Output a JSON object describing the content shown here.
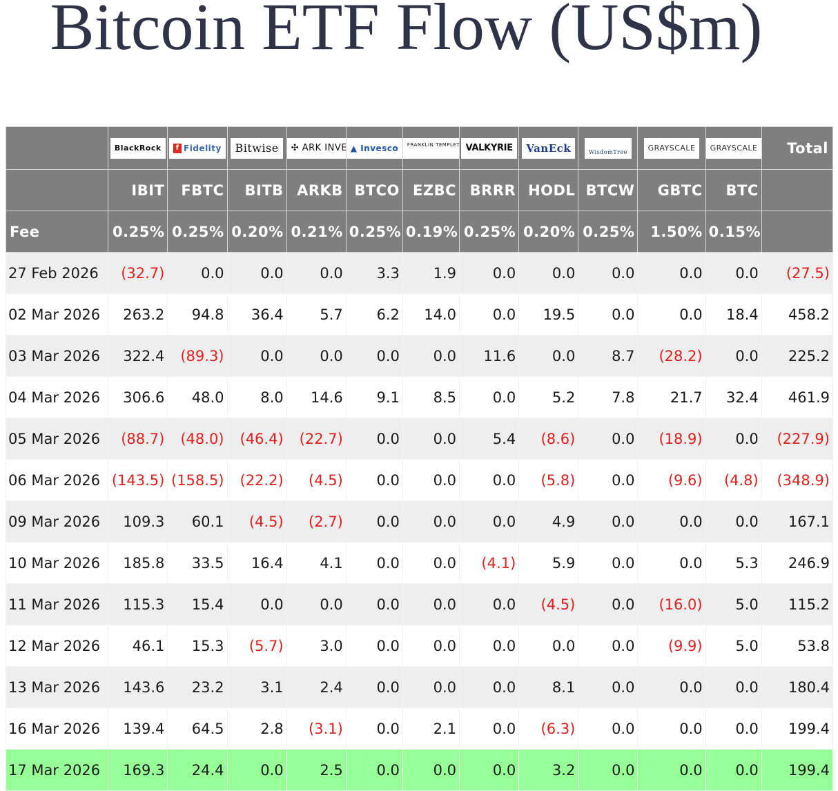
{
  "title": "Bitcoin ETF Flow (US$m)",
  "colors": {
    "header_bg": "#7f7f7f",
    "negative": "#e0201c",
    "highlight_row": "#96ff96",
    "alt_row": "#eeeeee"
  },
  "issuers": [
    "BlackRock",
    "Fidelity",
    "Bitwise",
    "ARK INVEST",
    "Invesco",
    "FRANKLIN TEMPLETON",
    "VALKYRIE",
    "VanEck",
    "WisdomTree",
    "GRAYSCALE",
    "GRAYSCALE"
  ],
  "total_label": "Total",
  "tickers": [
    "IBIT",
    "FBTC",
    "BITB",
    "ARKB",
    "BTCO",
    "EZBC",
    "BRRR",
    "HODL",
    "BTCW",
    "GBTC",
    "BTC"
  ],
  "fee_label": "Fee",
  "fees": [
    "0.25%",
    "0.25%",
    "0.20%",
    "0.21%",
    "0.25%",
    "0.19%",
    "0.25%",
    "0.20%",
    "0.25%",
    "1.50%",
    "0.15%"
  ],
  "rows": [
    {
      "date": "27 Feb 2026",
      "values": [
        "(32.7)",
        "0.0",
        "0.0",
        "0.0",
        "3.3",
        "1.9",
        "0.0",
        "0.0",
        "0.0",
        "0.0",
        "0.0"
      ],
      "total": "(27.5)"
    },
    {
      "date": "02 Mar 2026",
      "values": [
        "263.2",
        "94.8",
        "36.4",
        "5.7",
        "6.2",
        "14.0",
        "0.0",
        "19.5",
        "0.0",
        "0.0",
        "18.4"
      ],
      "total": "458.2"
    },
    {
      "date": "03 Mar 2026",
      "values": [
        "322.4",
        "(89.3)",
        "0.0",
        "0.0",
        "0.0",
        "0.0",
        "11.6",
        "0.0",
        "8.7",
        "(28.2)",
        "0.0"
      ],
      "total": "225.2"
    },
    {
      "date": "04 Mar 2026",
      "values": [
        "306.6",
        "48.0",
        "8.0",
        "14.6",
        "9.1",
        "8.5",
        "0.0",
        "5.2",
        "7.8",
        "21.7",
        "32.4"
      ],
      "total": "461.9"
    },
    {
      "date": "05 Mar 2026",
      "values": [
        "(88.7)",
        "(48.0)",
        "(46.4)",
        "(22.7)",
        "0.0",
        "0.0",
        "5.4",
        "(8.6)",
        "0.0",
        "(18.9)",
        "0.0"
      ],
      "total": "(227.9)"
    },
    {
      "date": "06 Mar 2026",
      "values": [
        "(143.5)",
        "(158.5)",
        "(22.2)",
        "(4.5)",
        "0.0",
        "0.0",
        "0.0",
        "(5.8)",
        "0.0",
        "(9.6)",
        "(4.8)"
      ],
      "total": "(348.9)"
    },
    {
      "date": "09 Mar 2026",
      "values": [
        "109.3",
        "60.1",
        "(4.5)",
        "(2.7)",
        "0.0",
        "0.0",
        "0.0",
        "4.9",
        "0.0",
        "0.0",
        "0.0"
      ],
      "total": "167.1"
    },
    {
      "date": "10 Mar 2026",
      "values": [
        "185.8",
        "33.5",
        "16.4",
        "4.1",
        "0.0",
        "0.0",
        "(4.1)",
        "5.9",
        "0.0",
        "0.0",
        "5.3"
      ],
      "total": "246.9"
    },
    {
      "date": "11 Mar 2026",
      "values": [
        "115.3",
        "15.4",
        "0.0",
        "0.0",
        "0.0",
        "0.0",
        "0.0",
        "(4.5)",
        "0.0",
        "(16.0)",
        "5.0"
      ],
      "total": "115.2"
    },
    {
      "date": "12 Mar 2026",
      "values": [
        "46.1",
        "15.3",
        "(5.7)",
        "3.0",
        "0.0",
        "0.0",
        "0.0",
        "0.0",
        "0.0",
        "(9.9)",
        "5.0"
      ],
      "total": "53.8"
    },
    {
      "date": "13 Mar 2026",
      "values": [
        "143.6",
        "23.2",
        "3.1",
        "2.4",
        "0.0",
        "0.0",
        "0.0",
        "8.1",
        "0.0",
        "0.0",
        "0.0"
      ],
      "total": "180.4"
    },
    {
      "date": "16 Mar 2026",
      "values": [
        "139.4",
        "64.5",
        "2.8",
        "(3.1)",
        "0.0",
        "2.1",
        "0.0",
        "(6.3)",
        "0.0",
        "0.0",
        "0.0"
      ],
      "total": "199.4"
    },
    {
      "date": "17 Mar 2026",
      "values": [
        "169.3",
        "24.4",
        "0.0",
        "2.5",
        "0.0",
        "0.0",
        "0.0",
        "3.2",
        "0.0",
        "0.0",
        "0.0"
      ],
      "total": "199.4",
      "highlight": true
    }
  ]
}
